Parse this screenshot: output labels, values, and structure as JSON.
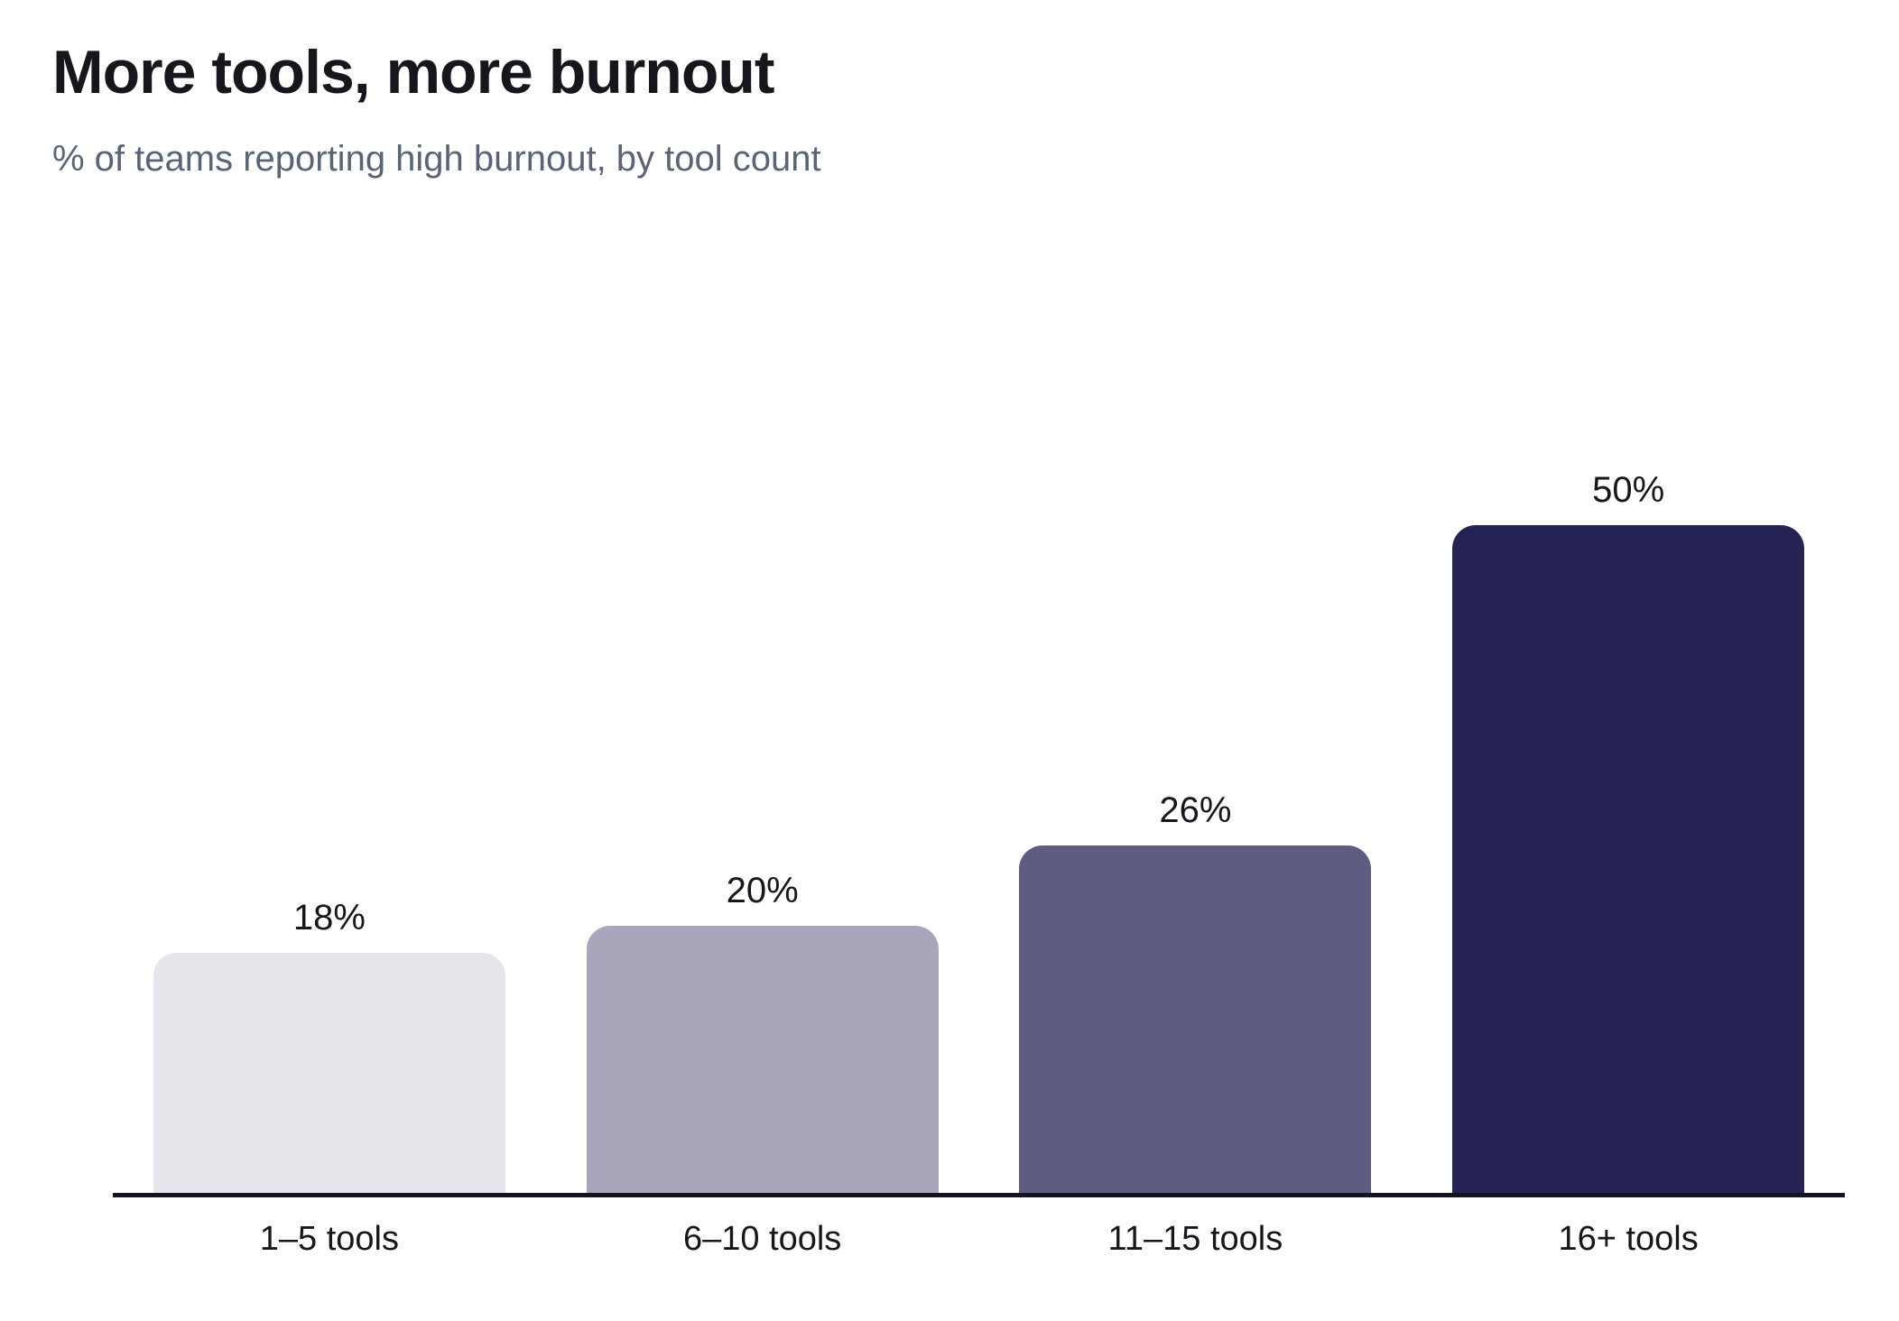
{
  "header": {
    "title": "More tools, more burnout",
    "subtitle": "% of teams reporting high burnout, by tool count"
  },
  "chart_data": {
    "type": "bar",
    "title": "More tools, more burnout",
    "subtitle": "% of teams reporting high burnout, by tool count",
    "categories": [
      "1–5 tools",
      "6–10 tools",
      "11–15 tools",
      "16+ tools"
    ],
    "values": [
      18,
      20,
      26,
      50
    ],
    "value_labels": [
      "18%",
      "20%",
      "26%",
      "50%"
    ],
    "bar_colors": [
      "#e6e5eb",
      "#a7a6ba",
      "#5e5c80",
      "#252254"
    ],
    "xlabel": "",
    "ylabel": "",
    "ylim": [
      0,
      55
    ],
    "grid": false,
    "legend": false,
    "y_axis_shown": false,
    "colors": {
      "title_text": "#16161d",
      "subtitle_text": "#5a6477",
      "label_text": "#16161d",
      "axis_line": "#14141f",
      "background": "#ffffff"
    }
  }
}
